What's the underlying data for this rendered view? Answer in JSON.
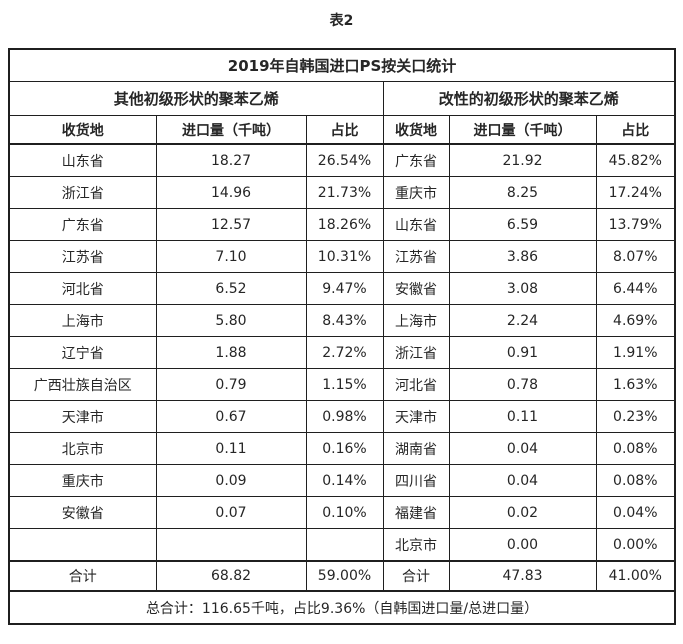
{
  "caption": "表2",
  "colors": {
    "border": "#1f1f1f",
    "text": "#262626",
    "background": "#ffffff"
  },
  "table": {
    "title": "2019年自韩国进口PS按关口统计",
    "sections": [
      {
        "title": "其他初级形状的聚苯乙烯",
        "columns": [
          "收货地",
          "进口量（千吨）",
          "占比"
        ],
        "rows": [
          [
            "山东省",
            "18.27",
            "26.54%"
          ],
          [
            "浙江省",
            "14.96",
            "21.73%"
          ],
          [
            "广东省",
            "12.57",
            "18.26%"
          ],
          [
            "江苏省",
            "7.10",
            "10.31%"
          ],
          [
            "河北省",
            "6.52",
            "9.47%"
          ],
          [
            "上海市",
            "5.80",
            "8.43%"
          ],
          [
            "辽宁省",
            "1.88",
            "2.72%"
          ],
          [
            "广西壮族自治区",
            "0.79",
            "1.15%"
          ],
          [
            "天津市",
            "0.67",
            "0.98%"
          ],
          [
            "北京市",
            "0.11",
            "0.16%"
          ],
          [
            "重庆市",
            "0.09",
            "0.14%"
          ],
          [
            "安徽省",
            "0.07",
            "0.10%"
          ],
          [
            "",
            "",
            ""
          ]
        ],
        "total": [
          "合计",
          "68.82",
          "59.00%"
        ]
      },
      {
        "title": "改性的初级形状的聚苯乙烯",
        "columns": [
          "收货地",
          "进口量（千吨）",
          "占比"
        ],
        "rows": [
          [
            "广东省",
            "21.92",
            "45.82%"
          ],
          [
            "重庆市",
            "8.25",
            "17.24%"
          ],
          [
            "山东省",
            "6.59",
            "13.79%"
          ],
          [
            "江苏省",
            "3.86",
            "8.07%"
          ],
          [
            "安徽省",
            "3.08",
            "6.44%"
          ],
          [
            "上海市",
            "2.24",
            "4.69%"
          ],
          [
            "浙江省",
            "0.91",
            "1.91%"
          ],
          [
            "河北省",
            "0.78",
            "1.63%"
          ],
          [
            "天津市",
            "0.11",
            "0.23%"
          ],
          [
            "湖南省",
            "0.04",
            "0.08%"
          ],
          [
            "四川省",
            "0.04",
            "0.08%"
          ],
          [
            "福建省",
            "0.02",
            "0.04%"
          ],
          [
            "北京市",
            "0.00",
            "0.00%"
          ]
        ],
        "total": [
          "合计",
          "47.83",
          "41.00%"
        ]
      }
    ],
    "footer": "总合计：116.65千吨，占比9.36%（自韩国进口量/总进口量）"
  }
}
